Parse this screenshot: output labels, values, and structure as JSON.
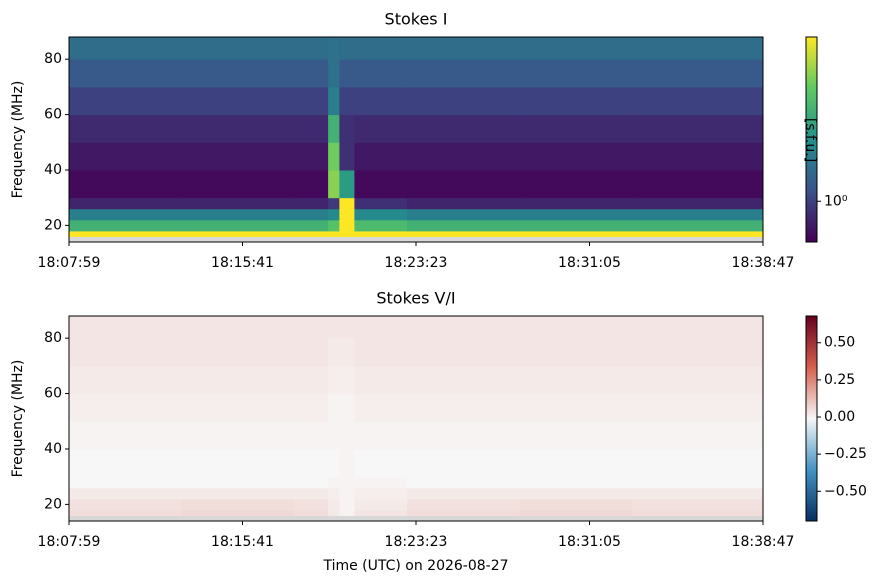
{
  "chart_data": [
    {
      "type": "heatmap",
      "title": "Stokes I",
      "ylabel": "Frequency (MHz)",
      "xlim": [
        0,
        1848
      ],
      "xticks": [
        {
          "value": 0,
          "label": "18:07:59"
        },
        {
          "value": 462,
          "label": "18:15:41"
        },
        {
          "value": 924,
          "label": "18:23:23"
        },
        {
          "value": 1386,
          "label": "18:31:05"
        },
        {
          "value": 1848,
          "label": "18:38:47"
        }
      ],
      "ylim": [
        14,
        88
      ],
      "yticks": [
        20,
        40,
        60,
        80
      ],
      "x_edges": [
        0,
        300,
        600,
        690,
        720,
        760,
        900,
        1200,
        1500,
        1848
      ],
      "y_edges": [
        16,
        18,
        22,
        26,
        30,
        40,
        50,
        60,
        70,
        80,
        88
      ],
      "z": [
        [
          25,
          25,
          25,
          25,
          25,
          25,
          25,
          25,
          25
        ],
        [
          6,
          6,
          6,
          8,
          25,
          7,
          6,
          6,
          6
        ],
        [
          2.5,
          2.5,
          2.5,
          3,
          25,
          3,
          2.5,
          2.5,
          2.5
        ],
        [
          0.7,
          0.7,
          0.7,
          0.9,
          25,
          0.8,
          0.7,
          0.7,
          0.7
        ],
        [
          0.5,
          0.5,
          0.5,
          12,
          4,
          0.5,
          0.5,
          0.5,
          0.5
        ],
        [
          0.6,
          0.6,
          0.6,
          10,
          0.8,
          0.6,
          0.6,
          0.6,
          0.6
        ],
        [
          0.75,
          0.75,
          0.75,
          6,
          0.8,
          0.75,
          0.75,
          0.75,
          0.75
        ],
        [
          1.0,
          1.0,
          1.0,
          2.5,
          1.0,
          1.0,
          1.0,
          1.0,
          1.0
        ],
        [
          1.4,
          1.4,
          1.4,
          2,
          1.4,
          1.4,
          1.4,
          1.4,
          1.4
        ],
        [
          1.9,
          1.9,
          1.9,
          2,
          1.9,
          1.9,
          1.9,
          1.9,
          1.9
        ]
      ],
      "colormap": "viridis",
      "color_scale": "log",
      "clim": [
        0.45,
        25
      ],
      "cticks": [
        {
          "value": 1,
          "label": "10⁰"
        }
      ],
      "colorbar_label": "[s.f.u.]"
    },
    {
      "type": "heatmap",
      "title": "Stokes V/I",
      "ylabel": "Frequency (MHz)",
      "xlabel": "Time (UTC) on 2026-08-27",
      "xlim": [
        0,
        1848
      ],
      "xticks": [
        {
          "value": 0,
          "label": "18:07:59"
        },
        {
          "value": 462,
          "label": "18:15:41"
        },
        {
          "value": 924,
          "label": "18:23:23"
        },
        {
          "value": 1386,
          "label": "18:31:05"
        },
        {
          "value": 1848,
          "label": "18:38:47"
        }
      ],
      "ylim": [
        14,
        88
      ],
      "yticks": [
        20,
        40,
        60,
        80
      ],
      "x_edges": [
        0,
        300,
        600,
        690,
        720,
        760,
        900,
        1200,
        1500,
        1848
      ],
      "y_edges": [
        16,
        18,
        22,
        26,
        30,
        40,
        50,
        60,
        70,
        80,
        88
      ],
      "z": [
        [
          0.05,
          0.06,
          0.05,
          0.02,
          0.0,
          0.03,
          0.05,
          0.06,
          0.05
        ],
        [
          0.04,
          0.05,
          0.04,
          0.02,
          0.0,
          0.02,
          0.04,
          0.05,
          0.04
        ],
        [
          0.02,
          0.02,
          0.02,
          0.01,
          0.0,
          0.01,
          0.02,
          0.02,
          0.02
        ],
        [
          -0.01,
          -0.01,
          -0.01,
          0.0,
          0.0,
          0.0,
          -0.01,
          -0.01,
          -0.01
        ],
        [
          -0.01,
          -0.01,
          -0.01,
          -0.01,
          0.0,
          -0.01,
          -0.01,
          -0.01,
          -0.01
        ],
        [
          0.0,
          0.0,
          0.0,
          0.0,
          0.0,
          0.0,
          0.0,
          0.0,
          0.0
        ],
        [
          0.01,
          0.01,
          0.01,
          0.0,
          0.0,
          0.01,
          0.01,
          0.01,
          0.01
        ],
        [
          0.02,
          0.02,
          0.02,
          0.01,
          0.01,
          0.02,
          0.02,
          0.02,
          0.02
        ],
        [
          0.03,
          0.03,
          0.03,
          0.02,
          0.02,
          0.03,
          0.03,
          0.03,
          0.03
        ],
        [
          0.03,
          0.03,
          0.03,
          0.03,
          0.03,
          0.03,
          0.03,
          0.03,
          0.03
        ]
      ],
      "colormap": "RdBu_r",
      "color_scale": "linear",
      "clim": [
        -0.7,
        0.68
      ],
      "cticks": [
        {
          "value": -0.5,
          "label": "−0.50"
        },
        {
          "value": -0.25,
          "label": "−0.25"
        },
        {
          "value": 0,
          "label": "0.00"
        },
        0.25,
        {
          "value": 0.5,
          "label": "0.50"
        }
      ]
    }
  ]
}
